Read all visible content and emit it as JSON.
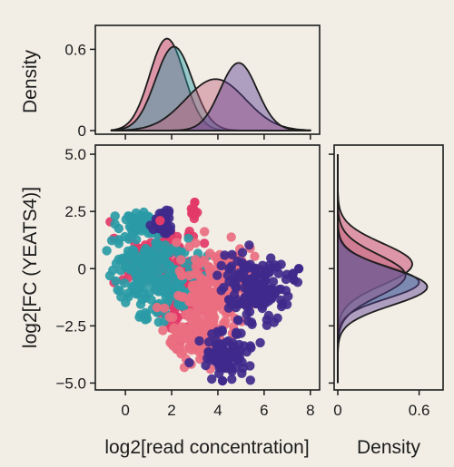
{
  "chart_data": [
    {
      "panel": "scatter",
      "type": "scatter",
      "xlabel": "log2[read concentration]",
      "ylabel": "log2[FC (YEATS4)]",
      "xlim": [
        -1.3,
        8.4
      ],
      "ylim": [
        -5.3,
        5.4
      ],
      "xticks": [
        "0",
        "2",
        "4",
        "6",
        "8"
      ],
      "yticks": [
        "5.0",
        "2.5",
        "0",
        "−2.5",
        "−5.0"
      ],
      "grid": false,
      "legend": "none",
      "series": [
        {
          "color": "#e23a68",
          "clusters": [
            {
              "x": 1.2,
              "y": 0.3,
              "sx": 0.9,
              "sy": 0.6
            },
            {
              "x": 2.6,
              "y": -1.3,
              "sx": 0.5,
              "sy": 0.9
            },
            {
              "x": 3.0,
              "y": 2.8,
              "sx": 0.1,
              "sy": 0.15
            }
          ]
        },
        {
          "color": "#2a9ba6",
          "clusters": [
            {
              "x": 1.1,
              "y": -0.3,
              "sx": 0.9,
              "sy": 0.9
            },
            {
              "x": 0.9,
              "y": 2.0,
              "sx": 0.6,
              "sy": 0.3
            }
          ]
        },
        {
          "color": "#ea6e80",
          "clusters": [
            {
              "x": 4.0,
              "y": -0.8,
              "sx": 0.9,
              "sy": 0.8
            },
            {
              "x": 3.1,
              "y": -2.8,
              "sx": 0.6,
              "sy": 0.7
            }
          ]
        },
        {
          "color": "#3f2a8c",
          "clusters": [
            {
              "x": 5.6,
              "y": -0.7,
              "sx": 0.7,
              "sy": 0.8
            },
            {
              "x": 4.3,
              "y": -3.8,
              "sx": 0.6,
              "sy": 0.5
            },
            {
              "x": 1.7,
              "y": 2.0,
              "sx": 0.3,
              "sy": 0.3
            }
          ]
        }
      ]
    },
    {
      "panel": "top-density",
      "type": "area",
      "ylabel": "Density",
      "yticks": [
        "0.6",
        "0"
      ],
      "ylim": [
        0,
        0.75
      ],
      "series": [
        {
          "color": "#c32a5e",
          "mu": 1.8,
          "sd": 0.75,
          "peak": 0.68
        },
        {
          "color": "#2a9ba6",
          "mu": 2.1,
          "sd": 0.8,
          "peak": 0.62
        },
        {
          "color": "#c2607a",
          "mu": 3.9,
          "sd": 1.3,
          "peak": 0.38
        },
        {
          "color": "#5b3f95",
          "mu": 4.9,
          "sd": 0.8,
          "peak": 0.5
        }
      ]
    },
    {
      "panel": "right-density",
      "type": "area",
      "xlabel": "Density",
      "xticks": [
        "0",
        "0.6"
      ],
      "xlim": [
        0,
        0.75
      ],
      "series": [
        {
          "color": "#c32a5e",
          "mu": 0.2,
          "sd": 0.9,
          "peak": 0.55
        },
        {
          "color": "#2a9ba6",
          "mu": -0.6,
          "sd": 0.7,
          "peak": 0.6
        },
        {
          "color": "#c2607a",
          "mu": -0.3,
          "sd": 0.9,
          "peak": 0.5
        },
        {
          "color": "#5b3f95",
          "mu": -0.8,
          "sd": 0.8,
          "peak": 0.66
        }
      ]
    }
  ]
}
